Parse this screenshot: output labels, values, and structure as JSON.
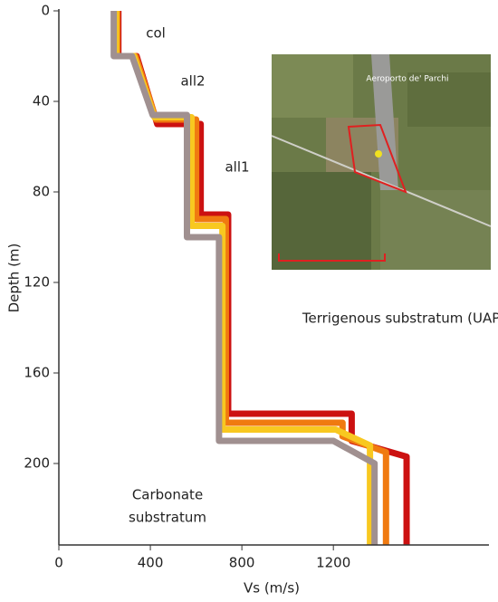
{
  "chart_data": {
    "type": "line",
    "xlabel": "Vs (m/s)",
    "ylabel": "Depth (m)",
    "xlim": [
      0,
      1880
    ],
    "ylim": [
      0,
      236
    ],
    "y_inverted": true,
    "xticks": [
      0,
      400,
      800,
      1200
    ],
    "yticks": [
      0,
      40,
      80,
      120,
      160,
      200
    ],
    "grid": false,
    "annotations": [
      "col",
      "all2",
      "all1",
      "Terrigenous substratum (UAP)",
      "Carbonate",
      "substratum"
    ],
    "inset_label": "Aeroporto de' Parchi",
    "series": [
      {
        "color": "#cc1111",
        "x": [
          260,
          260,
          340,
          430,
          620,
          620,
          740,
          740,
          1280,
          1280,
          1520,
          1520
        ],
        "values": [
          0,
          20,
          20,
          50,
          50,
          90,
          90,
          178,
          178,
          190,
          197,
          236
        ]
      },
      {
        "color": "#f07a10",
        "x": [
          255,
          255,
          335,
          425,
          600,
          600,
          730,
          730,
          1240,
          1240,
          1430,
          1430
        ],
        "values": [
          0,
          20,
          20,
          48,
          48,
          92,
          92,
          182,
          182,
          188,
          195,
          236
        ]
      },
      {
        "color": "#f8c820",
        "x": [
          250,
          250,
          328,
          418,
          580,
          580,
          715,
          715,
          1210,
          1360,
          1360
        ],
        "values": [
          0,
          20,
          20,
          47,
          47,
          95,
          95,
          185,
          185,
          192,
          236
        ]
      },
      {
        "color": "#a09090",
        "x": [
          240,
          240,
          320,
          410,
          560,
          560,
          700,
          700,
          1200,
          1380,
          1380
        ],
        "values": [
          0,
          20,
          20,
          46,
          46,
          100,
          100,
          190,
          190,
          200,
          236
        ]
      }
    ]
  }
}
